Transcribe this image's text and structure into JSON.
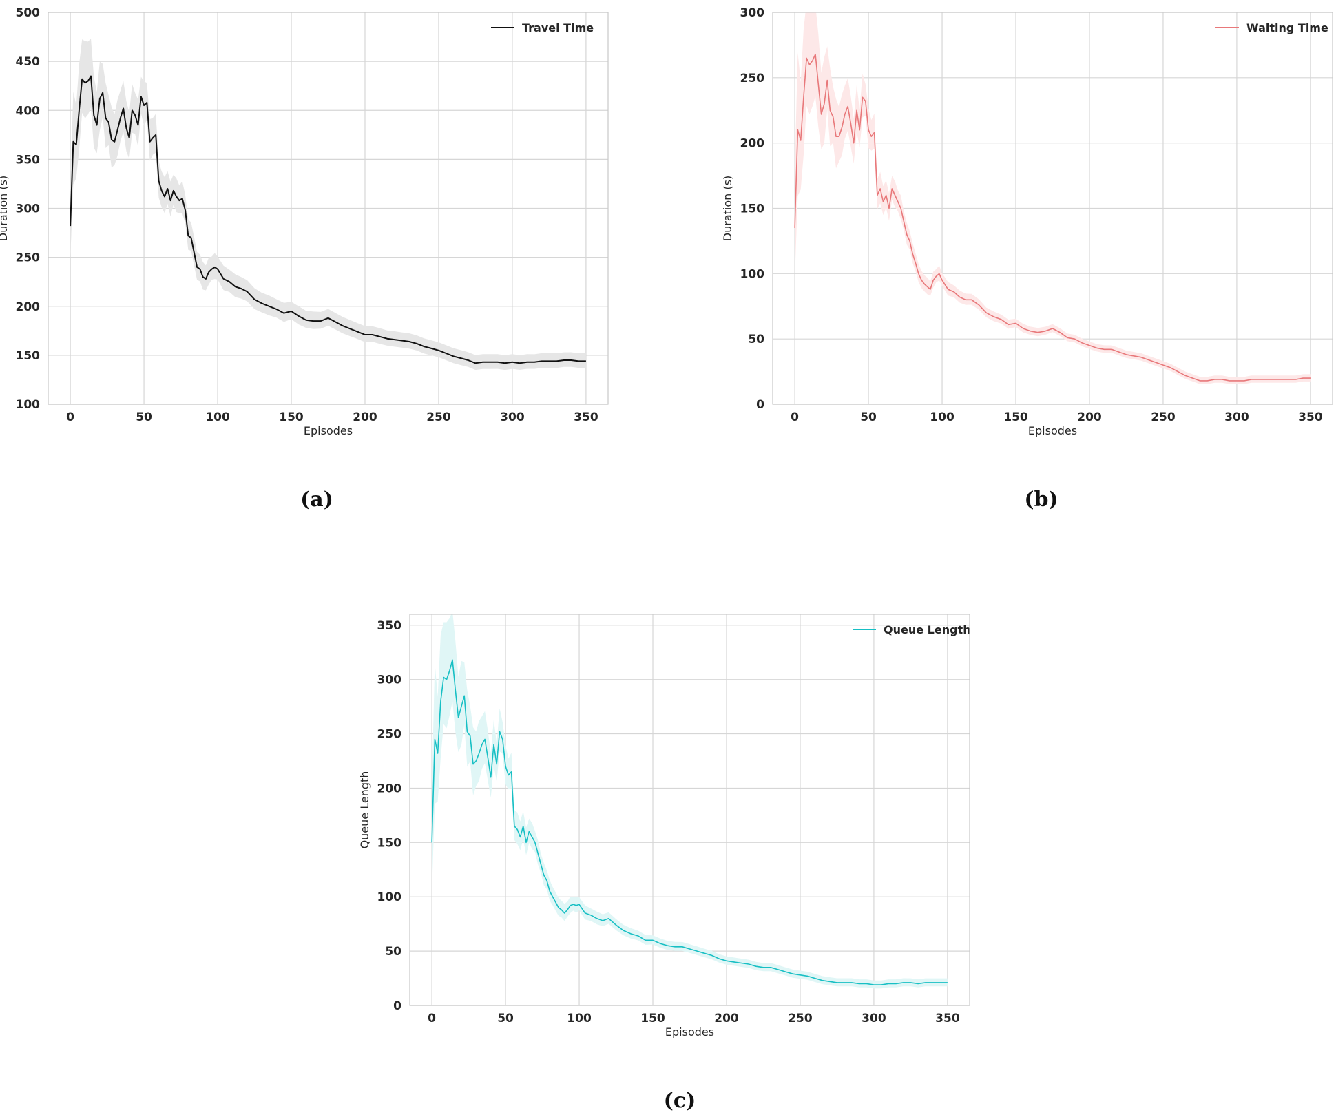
{
  "chart_data": [
    {
      "type": "line",
      "panel": "(a)",
      "title": "",
      "xlabel": "Episodes",
      "ylabel": "Duration (s)",
      "xlim": [
        -15,
        365
      ],
      "ylim": [
        100,
        500
      ],
      "xticks": [
        0,
        50,
        100,
        150,
        200,
        250,
        300,
        350
      ],
      "yticks": [
        100,
        150,
        200,
        250,
        300,
        350,
        400,
        450,
        500
      ],
      "grid": true,
      "legend_position": "top-right",
      "series": [
        {
          "name": "Travel Time",
          "color": "#111111",
          "band_color": "#e6e6e6",
          "band_spread": 45,
          "band_decay": 0.02,
          "band_floor": 8,
          "x": [
            0,
            2,
            4,
            6,
            8,
            10,
            12,
            14,
            16,
            18,
            20,
            22,
            24,
            26,
            28,
            30,
            32,
            34,
            36,
            38,
            40,
            42,
            44,
            46,
            48,
            50,
            52,
            54,
            56,
            58,
            60,
            62,
            64,
            66,
            68,
            70,
            72,
            74,
            76,
            78,
            80,
            82,
            84,
            86,
            88,
            90,
            92,
            94,
            96,
            98,
            100,
            104,
            108,
            112,
            116,
            120,
            125,
            130,
            135,
            140,
            145,
            150,
            155,
            160,
            165,
            170,
            175,
            180,
            185,
            190,
            195,
            200,
            205,
            210,
            215,
            220,
            225,
            230,
            235,
            240,
            245,
            250,
            255,
            260,
            265,
            270,
            275,
            280,
            285,
            290,
            295,
            300,
            305,
            310,
            315,
            320,
            325,
            330,
            335,
            340,
            345,
            350
          ],
          "y": [
            282,
            368,
            365,
            400,
            432,
            428,
            430,
            435,
            395,
            385,
            412,
            418,
            392,
            388,
            370,
            368,
            380,
            392,
            402,
            382,
            372,
            400,
            395,
            385,
            414,
            405,
            408,
            368,
            372,
            375,
            328,
            318,
            312,
            320,
            308,
            318,
            312,
            308,
            310,
            298,
            272,
            270,
            255,
            240,
            238,
            230,
            228,
            235,
            238,
            240,
            238,
            228,
            225,
            220,
            218,
            215,
            207,
            203,
            200,
            197,
            193,
            195,
            190,
            186,
            185,
            185,
            188,
            184,
            180,
            177,
            174,
            171,
            171,
            169,
            167,
            166,
            165,
            164,
            162,
            159,
            157,
            155,
            152,
            149,
            147,
            145,
            142,
            143,
            143,
            143,
            142,
            143,
            142,
            143,
            143,
            144,
            144,
            144,
            145,
            145,
            144,
            144
          ]
        }
      ]
    },
    {
      "type": "line",
      "panel": "(b)",
      "title": "",
      "xlabel": "Episodes",
      "ylabel": "Duration (s)",
      "xlim": [
        -15,
        365
      ],
      "ylim": [
        0,
        300
      ],
      "xticks": [
        0,
        50,
        100,
        150,
        200,
        250,
        300,
        350
      ],
      "yticks": [
        0,
        50,
        100,
        150,
        200,
        250,
        300
      ],
      "grid": true,
      "legend_position": "top-right",
      "series": [
        {
          "name": "Waiting Time",
          "color": "#e8787a",
          "band_color": "#fde8e8",
          "band_spread": 60,
          "band_decay": 0.03,
          "band_floor": 3,
          "x": [
            0,
            2,
            4,
            6,
            8,
            10,
            12,
            14,
            16,
            18,
            20,
            22,
            24,
            26,
            28,
            30,
            32,
            34,
            36,
            38,
            40,
            42,
            44,
            46,
            48,
            50,
            52,
            54,
            56,
            58,
            60,
            62,
            64,
            66,
            68,
            70,
            72,
            74,
            76,
            78,
            80,
            82,
            84,
            86,
            88,
            90,
            92,
            94,
            96,
            98,
            100,
            104,
            108,
            112,
            116,
            120,
            125,
            130,
            135,
            140,
            145,
            150,
            155,
            160,
            165,
            170,
            175,
            180,
            185,
            190,
            195,
            200,
            205,
            210,
            215,
            220,
            225,
            230,
            235,
            240,
            245,
            250,
            255,
            260,
            265,
            270,
            275,
            280,
            285,
            290,
            295,
            300,
            305,
            310,
            315,
            320,
            325,
            330,
            335,
            340,
            345,
            350
          ],
          "y": [
            135,
            210,
            202,
            235,
            265,
            260,
            263,
            268,
            245,
            222,
            230,
            248,
            225,
            220,
            205,
            205,
            212,
            222,
            228,
            215,
            200,
            225,
            210,
            235,
            232,
            210,
            205,
            208,
            160,
            165,
            155,
            160,
            150,
            165,
            160,
            155,
            150,
            140,
            130,
            125,
            115,
            108,
            100,
            95,
            92,
            90,
            88,
            95,
            98,
            100,
            95,
            88,
            86,
            82,
            80,
            80,
            76,
            70,
            67,
            65,
            61,
            62,
            58,
            56,
            55,
            56,
            58,
            55,
            51,
            50,
            47,
            45,
            43,
            42,
            42,
            40,
            38,
            37,
            36,
            34,
            32,
            30,
            28,
            25,
            22,
            20,
            18,
            18,
            19,
            19,
            18,
            18,
            18,
            19,
            19,
            19,
            19,
            19,
            19,
            19,
            20,
            20
          ]
        }
      ]
    },
    {
      "type": "line",
      "panel": "(c)",
      "title": "",
      "xlabel": "Episodes",
      "ylabel": "Queue Length",
      "xlim": [
        -15,
        365
      ],
      "ylim": [
        0,
        360
      ],
      "xticks": [
        0,
        50,
        100,
        150,
        200,
        250,
        300,
        350
      ],
      "yticks": [
        0,
        50,
        100,
        150,
        200,
        250,
        300,
        350
      ],
      "grid": true,
      "legend_position": "top-right",
      "series": [
        {
          "name": "Queue Length",
          "color": "#17bfc4",
          "band_color": "#e0f6f6",
          "band_spread": 70,
          "band_decay": 0.03,
          "band_floor": 4,
          "x": [
            0,
            2,
            4,
            6,
            8,
            10,
            12,
            14,
            16,
            18,
            20,
            22,
            24,
            26,
            28,
            30,
            32,
            34,
            36,
            38,
            40,
            42,
            44,
            46,
            48,
            50,
            52,
            54,
            56,
            58,
            60,
            62,
            64,
            66,
            68,
            70,
            72,
            74,
            76,
            78,
            80,
            82,
            84,
            86,
            88,
            90,
            92,
            94,
            96,
            98,
            100,
            104,
            108,
            112,
            116,
            120,
            125,
            130,
            135,
            140,
            145,
            150,
            155,
            160,
            165,
            170,
            175,
            180,
            185,
            190,
            195,
            200,
            205,
            210,
            215,
            220,
            225,
            230,
            235,
            240,
            245,
            250,
            255,
            260,
            265,
            270,
            275,
            280,
            285,
            290,
            295,
            300,
            305,
            310,
            315,
            320,
            325,
            330,
            335,
            340,
            345,
            350
          ],
          "y": [
            150,
            245,
            232,
            280,
            302,
            300,
            308,
            318,
            290,
            265,
            275,
            285,
            252,
            248,
            222,
            225,
            232,
            240,
            245,
            228,
            210,
            240,
            222,
            252,
            245,
            220,
            212,
            215,
            165,
            162,
            155,
            165,
            150,
            160,
            155,
            150,
            140,
            130,
            120,
            115,
            105,
            100,
            95,
            90,
            88,
            85,
            88,
            92,
            93,
            92,
            93,
            85,
            83,
            80,
            78,
            80,
            74,
            69,
            66,
            64,
            60,
            60,
            57,
            55,
            54,
            54,
            52,
            50,
            48,
            46,
            43,
            41,
            40,
            39,
            38,
            36,
            35,
            35,
            33,
            31,
            29,
            28,
            27,
            25,
            23,
            22,
            21,
            21,
            21,
            20,
            20,
            19,
            19,
            20,
            20,
            21,
            21,
            20,
            21,
            21,
            21,
            21
          ]
        }
      ]
    }
  ]
}
